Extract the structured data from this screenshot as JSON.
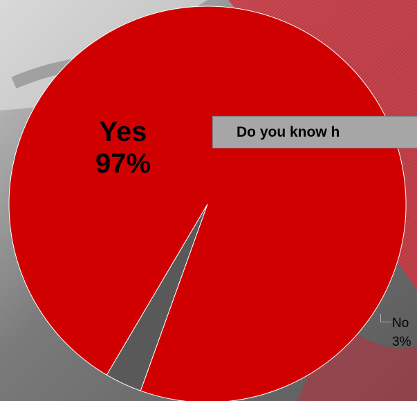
{
  "colors": {
    "yes": "#d00000",
    "no": "#595959",
    "title_bg": "#a6a6a6"
  },
  "chart_data": {
    "type": "pie",
    "title": "Do you know h",
    "series": [
      {
        "label": "Yes",
        "value": 97,
        "display": "97%",
        "color": "#d00000"
      },
      {
        "label": "No",
        "value": 3,
        "display": "3%",
        "color": "#595959"
      }
    ],
    "legend": "none",
    "data_labels": "category and percentage"
  }
}
